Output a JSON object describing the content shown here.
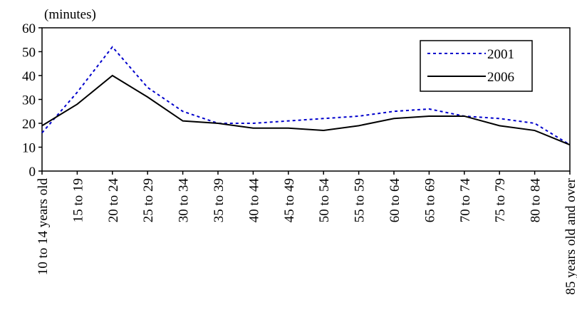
{
  "chart_data": {
    "type": "line",
    "y_label": "(minutes)",
    "categories": [
      "10 to 14 years old",
      "15 to 19",
      "20 to 24",
      "25 to 29",
      "30 to 34",
      "35 to 39",
      "40 to 44",
      "45 to 49",
      "50 to 54",
      "55 to 59",
      "60 to 64",
      "65 to 69",
      "70 to 74",
      "75 to 79",
      "80 to 84",
      "85 years old and over"
    ],
    "series": [
      {
        "name": "2001",
        "color": "#0000cc",
        "dash": true,
        "values": [
          16,
          33,
          52,
          35,
          25,
          20,
          20,
          21,
          22,
          23,
          25,
          26,
          23,
          22,
          20,
          11
        ]
      },
      {
        "name": "2006",
        "color": "#000000",
        "dash": false,
        "values": [
          19,
          28,
          40,
          31,
          21,
          20,
          18,
          18,
          17,
          19,
          22,
          23,
          23,
          19,
          17,
          11
        ]
      }
    ],
    "ylim": [
      0,
      60
    ],
    "yticks": [
      0,
      10,
      20,
      30,
      40,
      50,
      60
    ],
    "legend": "top-right"
  }
}
